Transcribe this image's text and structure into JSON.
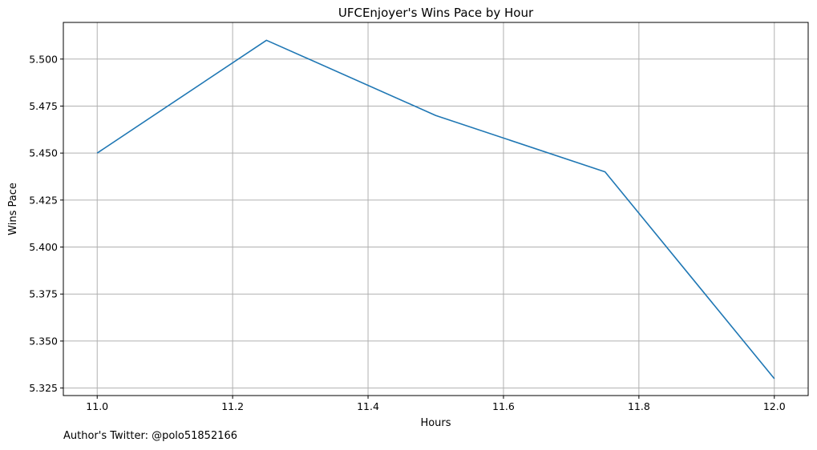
{
  "chart_data": {
    "type": "line",
    "title": "UFCEnjoyer's Wins Pace by Hour",
    "xlabel": "Hours",
    "ylabel": "Wins Pace",
    "x": [
      11.0,
      11.25,
      11.5,
      11.75,
      12.0
    ],
    "series": [
      {
        "values": [
          5.45,
          5.51,
          5.47,
          5.44,
          5.33
        ],
        "color": "#1f77b4"
      }
    ],
    "xlim": [
      10.95,
      12.05
    ],
    "ylim": [
      5.321,
      5.5195
    ],
    "xticks": [
      {
        "value": 11.0,
        "label": "11.0"
      },
      {
        "value": 11.2,
        "label": "11.2"
      },
      {
        "value": 11.4,
        "label": "11.4"
      },
      {
        "value": 11.6,
        "label": "11.6"
      },
      {
        "value": 11.8,
        "label": "11.8"
      },
      {
        "value": 12.0,
        "label": "12.0"
      }
    ],
    "yticks": [
      {
        "value": 5.325,
        "label": "5.325"
      },
      {
        "value": 5.35,
        "label": "5.350"
      },
      {
        "value": 5.375,
        "label": "5.375"
      },
      {
        "value": 5.4,
        "label": "5.400"
      },
      {
        "value": 5.425,
        "label": "5.425"
      },
      {
        "value": 5.45,
        "label": "5.450"
      },
      {
        "value": 5.475,
        "label": "5.475"
      },
      {
        "value": 5.5,
        "label": "5.500"
      }
    ],
    "grid": true,
    "grid_color": "#b0b0b0"
  },
  "footer": {
    "text": "Author's Twitter: @polo51852166"
  }
}
